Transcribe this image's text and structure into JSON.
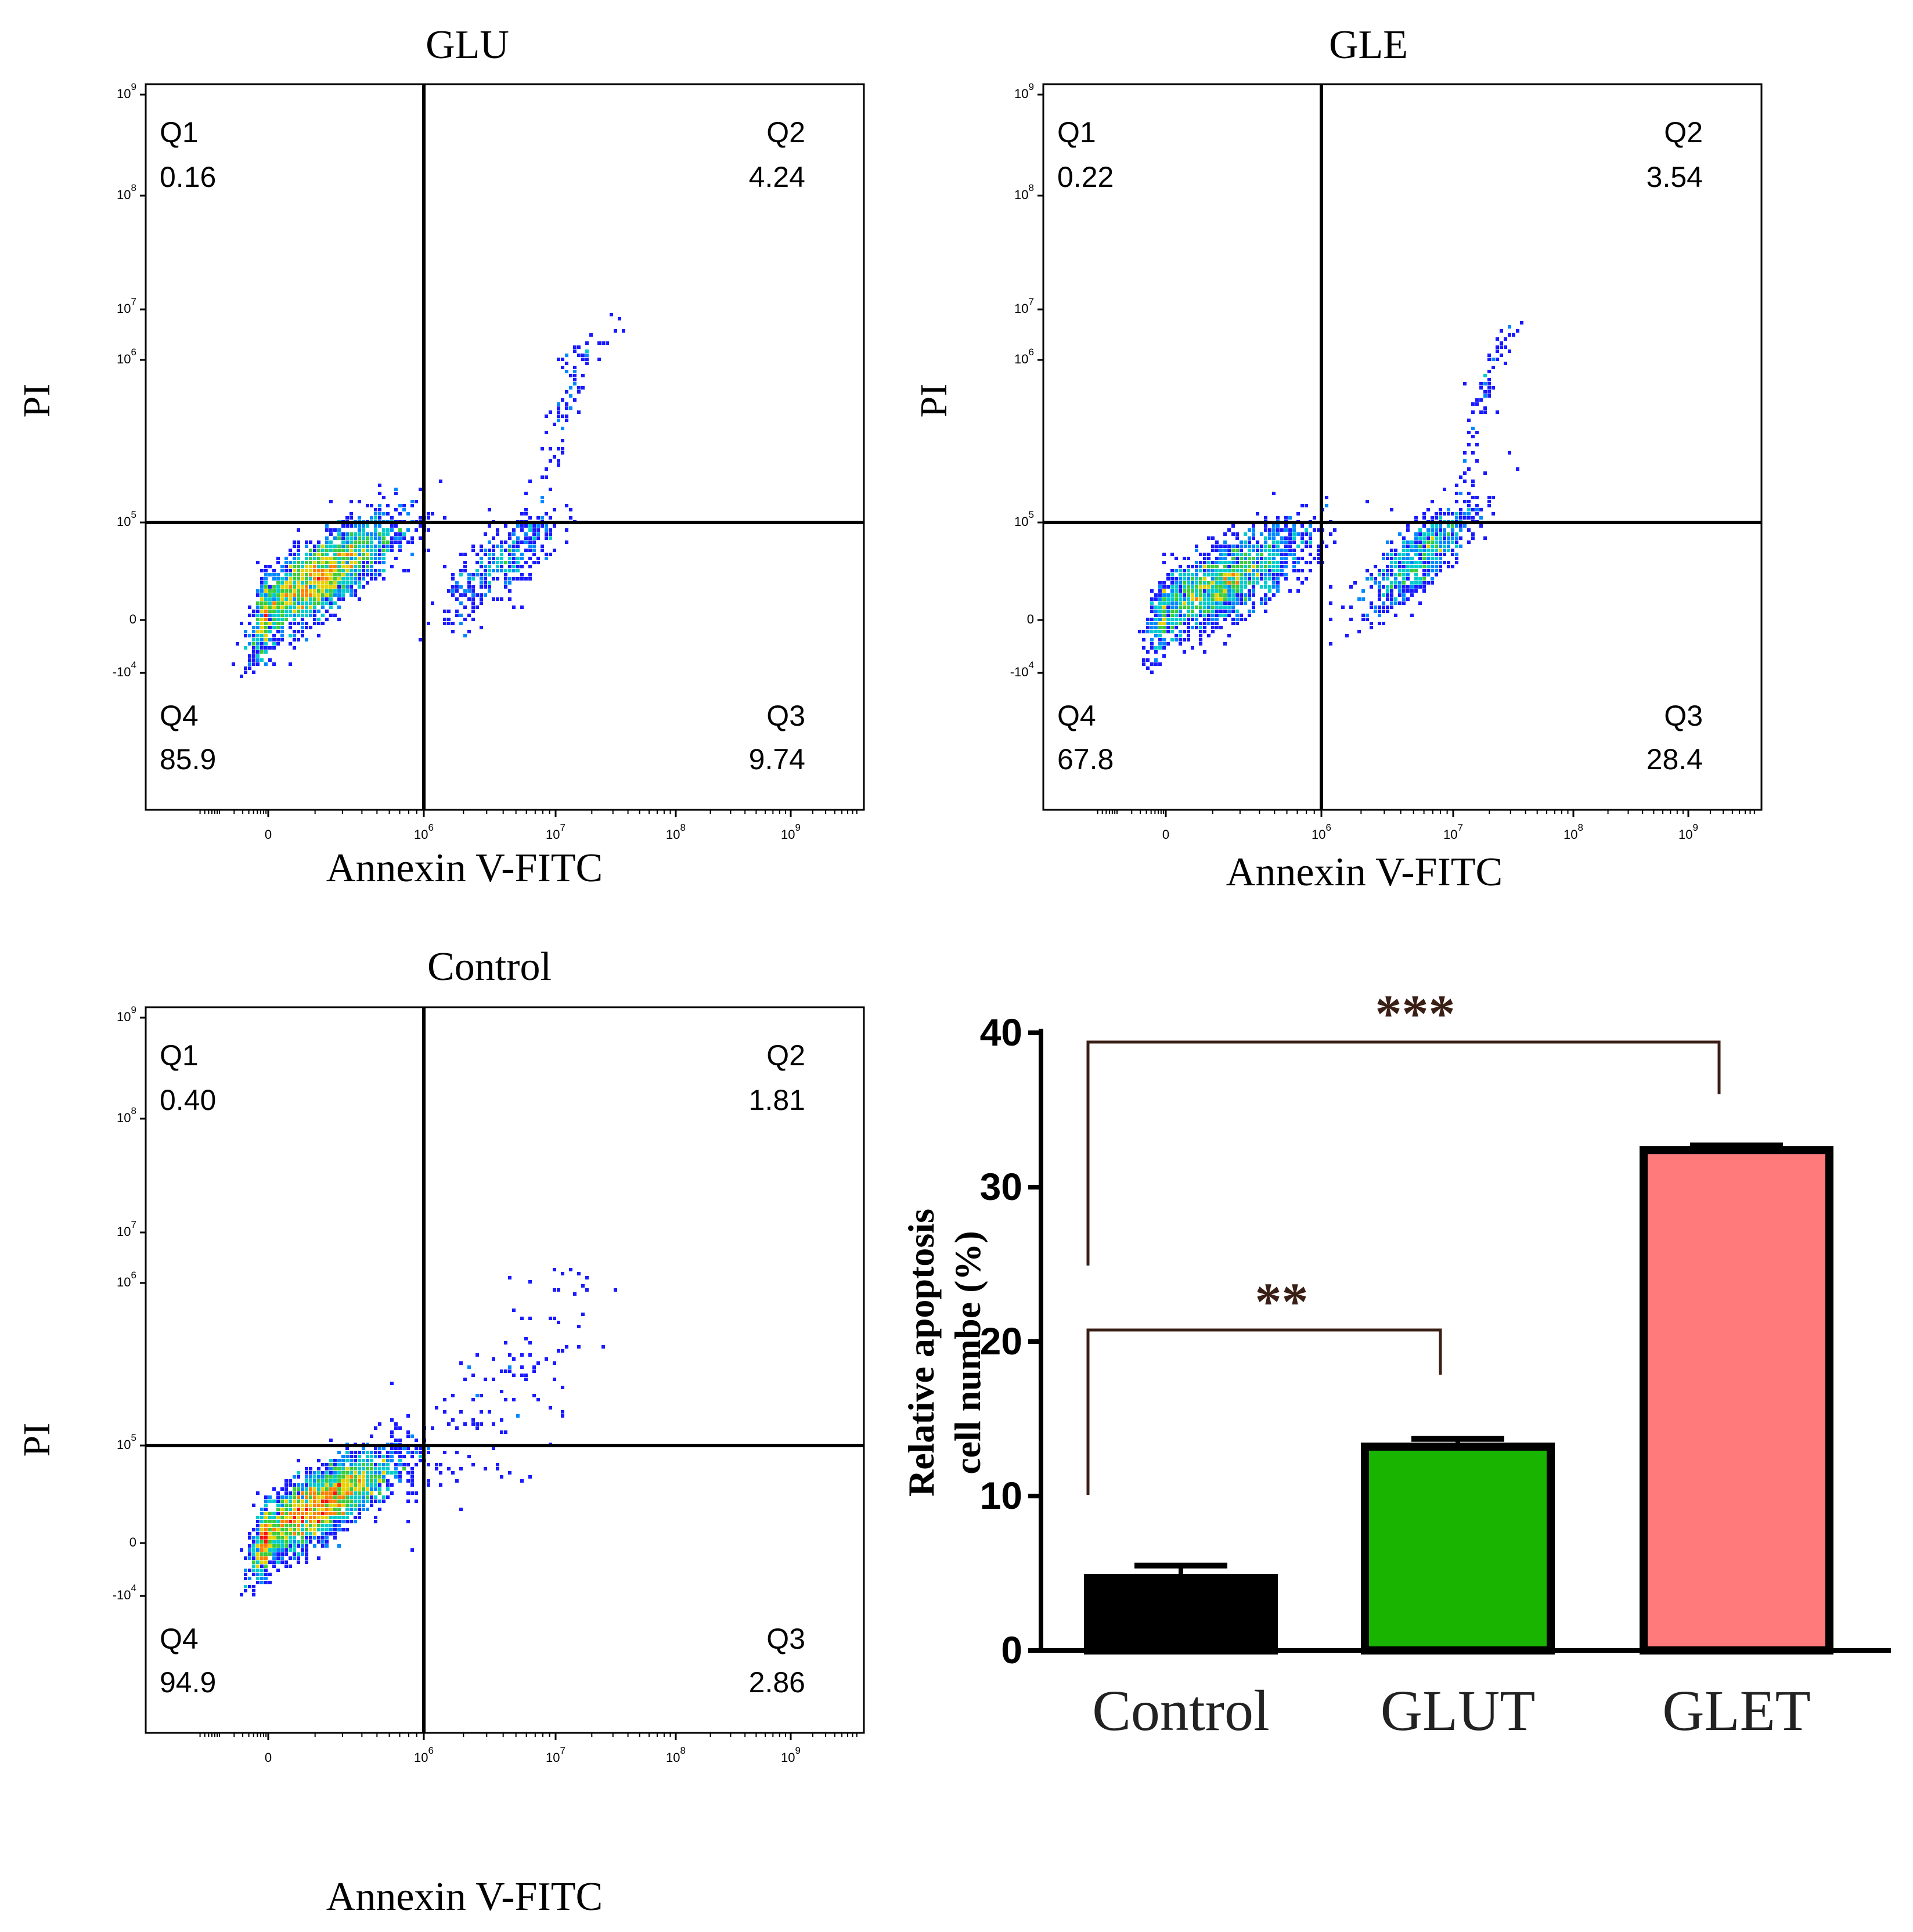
{
  "panels": [
    {
      "id": "glu",
      "title": "GLU",
      "xlabel": "Annexin V-FITC",
      "ylabel": "PI",
      "quadrants": {
        "q1": {
          "label": "Q1",
          "value": "0.16"
        },
        "q2": {
          "label": "Q2",
          "value": "4.24"
        },
        "q3": {
          "label": "Q3",
          "value": "9.74"
        },
        "q4": {
          "label": "Q4",
          "value": "85.9"
        }
      },
      "clusters": [
        {
          "cx": 5.3,
          "cy": 4.58,
          "sx": 0.26,
          "sy": 0.22,
          "n": 2600,
          "rho": 0.8
        },
        {
          "cx": 6.6,
          "cy": 4.7,
          "sx": 0.22,
          "sy": 0.2,
          "n": 380,
          "rho": 0.75
        },
        {
          "cx": 7.1,
          "cy": 5.8,
          "sx": 0.15,
          "sy": 0.35,
          "n": 90,
          "rho": 0.9
        }
      ]
    },
    {
      "id": "gle",
      "title": "GLE",
      "xlabel": "Annexin V-FITC",
      "ylabel": "PI",
      "quadrants": {
        "q1": {
          "label": "Q1",
          "value": "0.22"
        },
        "q2": {
          "label": "Q2",
          "value": "3.54"
        },
        "q3": {
          "label": "Q3",
          "value": "28.4"
        },
        "q4": {
          "label": "Q4",
          "value": "67.8"
        }
      },
      "clusters": [
        {
          "cx": 5.35,
          "cy": 4.55,
          "sx": 0.28,
          "sy": 0.2,
          "n": 1800,
          "rho": 0.75
        },
        {
          "cx": 6.75,
          "cy": 4.75,
          "sx": 0.22,
          "sy": 0.2,
          "n": 700,
          "rho": 0.8
        },
        {
          "cx": 7.3,
          "cy": 5.9,
          "sx": 0.12,
          "sy": 0.4,
          "n": 70,
          "rho": 0.9
        }
      ]
    },
    {
      "id": "control",
      "title": "Control",
      "xlabel": "Annexin V-FITC",
      "ylabel": "PI",
      "quadrants": {
        "q1": {
          "label": "Q1",
          "value": "0.40"
        },
        "q2": {
          "label": "Q2",
          "value": "1.81"
        },
        "q3": {
          "label": "Q3",
          "value": "2.86"
        },
        "q4": {
          "label": "Q4",
          "value": "94.9"
        }
      },
      "clusters": [
        {
          "cx": 5.3,
          "cy": 4.55,
          "sx": 0.26,
          "sy": 0.2,
          "n": 3000,
          "rho": 0.8
        },
        {
          "cx": 6.6,
          "cy": 5.3,
          "sx": 0.35,
          "sy": 0.4,
          "n": 120,
          "rho": 0.7
        }
      ]
    }
  ],
  "axis_ticks": {
    "x": [
      "0",
      "10^6",
      "10^7",
      "10^8",
      "10^9"
    ],
    "y": [
      "10^9",
      "10^8",
      "10^7",
      "10^6",
      "10^5",
      "0",
      "-10^4"
    ]
  },
  "chart_data": {
    "type": "bar",
    "categories": [
      "Control",
      "GLUT",
      "GLET"
    ],
    "values": [
      4.7,
      13.2,
      32.4
    ],
    "errors": [
      0.8,
      0.5,
      0.3
    ],
    "ylabel_line1": "Relative apoptosis",
    "ylabel_line2": "cell numbe (%)",
    "ylim": [
      0,
      40
    ],
    "yticks": [
      "0",
      "10",
      "20",
      "30",
      "40"
    ],
    "colors": [
      "#000000",
      "#19b400",
      "#ff7b7b"
    ],
    "significance": [
      {
        "from": "Control",
        "to": "GLUT",
        "label": "**"
      },
      {
        "from": "Control",
        "to": "GLET",
        "label": "***"
      }
    ]
  },
  "flow_axis_model": {
    "x": [
      "0",
      "10^6",
      "10^7",
      "10^8",
      "10^9"
    ],
    "gate": {
      "x": "10^6",
      "y": "10^5"
    }
  }
}
